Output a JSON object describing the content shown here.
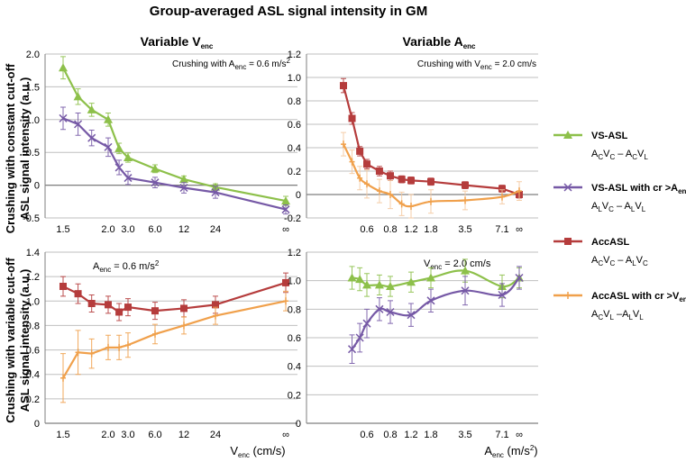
{
  "figure": {
    "title": "Group-averaged ASL signal intensity in GM",
    "col_headers": [
      {
        "main": "Variable V",
        "sub": "enc"
      },
      {
        "main": "Variable A",
        "sub": "enc"
      }
    ],
    "row_labels": [
      [
        "Crushing with constant cut-off",
        "ASL signal intensity (a.u.)"
      ],
      [
        "Crushing with variable cut-off",
        "ASL signal intensity (a.u.)"
      ]
    ],
    "x_axis_labels": [
      {
        "main": "V",
        "sub": "enc",
        "tail": " (cm/s)"
      },
      {
        "main": "A",
        "sub": "enc",
        "tail": " (m/s",
        "sup": "2",
        "end": ")"
      }
    ],
    "annotations": [
      {
        "panel": 0,
        "main": "Crushing with A",
        "sub": "enc",
        "tail": " = 0.6 m/s",
        "sup": "2",
        "end": ""
      },
      {
        "panel": 1,
        "main": "Crushing with V",
        "sub": "enc",
        "tail": " = 2.0 cm/s",
        "sup": "",
        "end": ""
      },
      {
        "panel": 2,
        "main": "A",
        "sub": "enc",
        "tail": " = 0.6 m/s",
        "sup": "2",
        "end": ""
      },
      {
        "panel": 3,
        "main": "V",
        "sub": "enc",
        "tail": " = 2.0 cm/s",
        "sup": "",
        "end": ""
      }
    ],
    "colors": {
      "vs": "#8dc04a",
      "vscr": "#7659a6",
      "acc": "#b53c3c",
      "acccr": "#f0a04b",
      "errlight": "#f4c9a0",
      "grid": "#bfbfbf",
      "axis": "#7f7f7f"
    }
  },
  "legend": [
    {
      "name": "VS-ASL",
      "series": "vs",
      "marker": "triangle",
      "parts": [
        [
          "A",
          "C"
        ],
        [
          "V",
          "C"
        ],
        [
          " – ",
          ""
        ],
        [
          "A",
          "C"
        ],
        [
          "V",
          "L"
        ]
      ]
    },
    {
      "name": "VS-ASL with cr >A",
      "name_sub": "enc",
      "series": "vscr",
      "marker": "x",
      "parts": [
        [
          "A",
          "L"
        ],
        [
          "V",
          "C"
        ],
        [
          " – ",
          ""
        ],
        [
          "A",
          "L"
        ],
        [
          "V",
          "L"
        ]
      ]
    },
    {
      "name": "AccASL",
      "series": "acc",
      "marker": "square",
      "parts": [
        [
          "A",
          "C"
        ],
        [
          "V",
          "C"
        ],
        [
          " – ",
          ""
        ],
        [
          "A",
          "L"
        ],
        [
          "V",
          "C"
        ]
      ]
    },
    {
      "name": "AccASL with cr >V",
      "name_sub": "enc",
      "series": "acccr",
      "marker": "plus",
      "parts": [
        [
          "A",
          "C"
        ],
        [
          "V",
          "L"
        ],
        [
          " –",
          ""
        ],
        [
          "A",
          "L"
        ],
        [
          "V",
          "L"
        ]
      ]
    }
  ],
  "chart_data": [
    {
      "type": "line",
      "title": "Variable Venc — Crushing with constant cut-off",
      "xlabel": "",
      "ylabel": "ASL signal intensity (a.u.)",
      "x_tick_labels": [
        "1.5",
        "2.0",
        "3.0",
        "6.0",
        "12",
        "24",
        "∞"
      ],
      "x_tick_pos": [
        1.5,
        2.0,
        3.0,
        6.0,
        12,
        24,
        1000
      ],
      "ylim": [
        -0.5,
        2.0
      ],
      "y_ticks": [
        -0.5,
        0,
        0.5,
        1.0,
        1.5,
        2.0
      ],
      "y_tick_labels": [
        "-0.5",
        "0",
        "0.5",
        "1.0",
        "1.5",
        "2.0"
      ],
      "x_scale": "log",
      "series": [
        {
          "name": "VS-ASL",
          "color": "vs",
          "marker": "triangle",
          "smooth": false,
          "x": [
            1.5,
            1.65,
            1.8,
            2.0,
            2.5,
            3.0,
            6.0,
            12,
            24,
            1000
          ],
          "y": [
            1.79,
            1.35,
            1.15,
            1.0,
            0.56,
            0.42,
            0.25,
            0.09,
            -0.03,
            -0.24
          ],
          "err": [
            0.17,
            0.12,
            0.1,
            0.1,
            0.08,
            0.07,
            0.06,
            0.05,
            0.05,
            0.07
          ]
        },
        {
          "name": "VS-ASL with cr >Aenc",
          "color": "vscr",
          "marker": "x",
          "smooth": false,
          "x": [
            1.5,
            1.65,
            1.8,
            2.0,
            2.5,
            3.0,
            6.0,
            12,
            24,
            1000
          ],
          "y": [
            1.02,
            0.93,
            0.72,
            0.58,
            0.27,
            0.11,
            0.04,
            -0.04,
            -0.11,
            -0.37
          ],
          "err": [
            0.17,
            0.17,
            0.12,
            0.14,
            0.11,
            0.1,
            0.08,
            0.08,
            0.09,
            0.07
          ]
        }
      ]
    },
    {
      "type": "line",
      "title": "Variable Aenc — Crushing with constant cut-off",
      "xlabel": "",
      "ylabel": "",
      "x_tick_labels": [
        "0.6",
        "0.8",
        "1.2",
        "1.8",
        "3.5",
        "7.1",
        "∞"
      ],
      "x_tick_pos": [
        0.6,
        0.8,
        1.2,
        1.8,
        3.5,
        7.1,
        25
      ],
      "ylim": [
        -0.2,
        1.2
      ],
      "y_ticks": [
        -0.2,
        0,
        0.2,
        0.4,
        0.6,
        0.8,
        1.0,
        1.2
      ],
      "y_tick_labels": [
        "-0.2",
        "0",
        "0.2",
        "0.4",
        "0.6",
        "0.8",
        "1.0",
        "1.2"
      ],
      "x_scale": "log",
      "series": [
        {
          "name": "AccASL",
          "color": "acc",
          "marker": "square",
          "smooth": false,
          "x": [
            0.45,
            0.5,
            0.55,
            0.6,
            0.7,
            0.8,
            1.0,
            1.2,
            1.8,
            3.5,
            7.1,
            25
          ],
          "y": [
            0.93,
            0.65,
            0.37,
            0.26,
            0.2,
            0.16,
            0.13,
            0.12,
            0.11,
            0.08,
            0.05,
            0.0
          ],
          "err": [
            0.06,
            0.05,
            0.04,
            0.04,
            0.04,
            0.04,
            0.03,
            0.03,
            0.03,
            0.03,
            0.03,
            0.03
          ]
        },
        {
          "name": "AccASL with cr >Venc",
          "color": "acccr",
          "marker": "plus",
          "smooth": true,
          "x": [
            0.45,
            0.5,
            0.55,
            0.6,
            0.7,
            0.8,
            1.0,
            1.2,
            1.8,
            3.5,
            7.1,
            25
          ],
          "y": [
            0.43,
            0.28,
            0.14,
            0.09,
            0.03,
            0.0,
            -0.08,
            -0.1,
            -0.06,
            -0.05,
            -0.02,
            0.03
          ],
          "err": [
            0.1,
            0.1,
            0.1,
            0.12,
            0.1,
            0.12,
            0.1,
            0.1,
            0.1,
            0.08,
            0.06,
            0.08
          ]
        }
      ]
    },
    {
      "type": "line",
      "title": "Variable Venc — Crushing with variable cut-off",
      "xlabel": "Venc (cm/s)",
      "ylabel": "ASL signal intensity (a.u.)",
      "x_tick_labels": [
        "1.5",
        "2.0",
        "3.0",
        "6.0",
        "12",
        "24",
        "∞"
      ],
      "x_tick_pos": [
        1.5,
        2.0,
        3.0,
        6.0,
        12,
        24,
        1000
      ],
      "ylim": [
        0,
        1.4
      ],
      "y_ticks": [
        0,
        0.2,
        0.4,
        0.6,
        0.8,
        1.0,
        1.2,
        1.4
      ],
      "y_tick_labels": [
        "0",
        "0.2",
        "0.4",
        "0.6",
        "0.8",
        "1.0",
        "1.2",
        "1.4"
      ],
      "x_scale": "log",
      "series": [
        {
          "name": "AccASL",
          "color": "acc",
          "marker": "square",
          "smooth": false,
          "x": [
            1.5,
            1.65,
            1.8,
            2.0,
            2.5,
            3.0,
            6.0,
            12,
            24,
            1000
          ],
          "y": [
            1.12,
            1.06,
            0.98,
            0.97,
            0.91,
            0.95,
            0.92,
            0.94,
            0.97,
            1.15
          ],
          "err": [
            0.08,
            0.08,
            0.07,
            0.07,
            0.07,
            0.07,
            0.07,
            0.07,
            0.07,
            0.08
          ]
        },
        {
          "name": "AccASL with cr >Venc",
          "color": "acccr",
          "marker": "plus",
          "smooth": false,
          "x": [
            1.5,
            1.65,
            1.8,
            2.0,
            2.5,
            3.0,
            6.0,
            12,
            24,
            1000
          ],
          "y": [
            0.37,
            0.58,
            0.57,
            0.62,
            0.62,
            0.64,
            0.73,
            0.8,
            0.88,
            1.0
          ],
          "err": [
            0.2,
            0.18,
            0.12,
            0.1,
            0.1,
            0.1,
            0.08,
            0.07,
            0.07,
            0.08
          ]
        }
      ]
    },
    {
      "type": "line",
      "title": "Variable Aenc — Crushing with variable cut-off",
      "xlabel": "Aenc (m/s2)",
      "ylabel": "",
      "x_tick_labels": [
        "0.6",
        "0.8",
        "1.2",
        "1.8",
        "3.5",
        "7.1",
        "∞"
      ],
      "x_tick_pos": [
        0.6,
        0.8,
        1.2,
        1.8,
        3.5,
        7.1,
        25
      ],
      "ylim": [
        0,
        1.2
      ],
      "y_ticks": [
        0,
        0.2,
        0.4,
        0.6,
        0.8,
        1.0,
        1.2
      ],
      "y_tick_labels": [
        "0",
        "0.2",
        "0.4",
        "0.6",
        "0.8",
        "1.0",
        "1.2"
      ],
      "x_scale": "log",
      "series": [
        {
          "name": "VS-ASL",
          "color": "vs",
          "marker": "triangle",
          "smooth": true,
          "x": [
            0.5,
            0.55,
            0.6,
            0.7,
            0.8,
            1.2,
            1.8,
            3.5,
            7.1,
            25
          ],
          "y": [
            1.02,
            1.01,
            0.97,
            0.97,
            0.96,
            0.99,
            1.02,
            1.07,
            0.96,
            1.02
          ],
          "err": [
            0.08,
            0.08,
            0.08,
            0.07,
            0.07,
            0.07,
            0.07,
            0.08,
            0.08,
            0.07
          ]
        },
        {
          "name": "VS-ASL with cr >Aenc",
          "color": "vscr",
          "marker": "x",
          "smooth": true,
          "x": [
            0.5,
            0.55,
            0.6,
            0.7,
            0.8,
            1.2,
            1.8,
            3.5,
            7.1,
            25
          ],
          "y": [
            0.52,
            0.6,
            0.7,
            0.8,
            0.78,
            0.76,
            0.86,
            0.93,
            0.9,
            1.02
          ],
          "err": [
            0.1,
            0.1,
            0.1,
            0.08,
            0.08,
            0.08,
            0.08,
            0.1,
            0.08,
            0.08
          ]
        }
      ]
    }
  ]
}
